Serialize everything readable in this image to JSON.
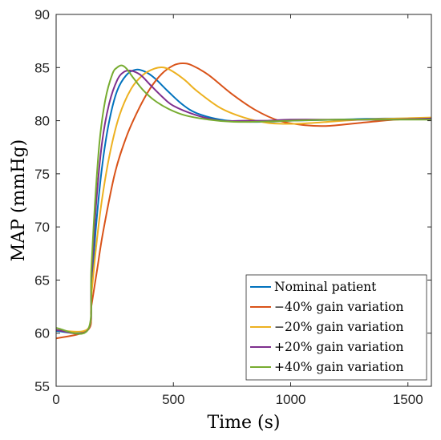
{
  "chart_data": {
    "type": "line",
    "xlabel": "Time (s)",
    "ylabel": "MAP (mmHg)",
    "xlim": [
      0,
      1600
    ],
    "ylim": [
      55,
      90
    ],
    "xticks": [
      0,
      500,
      1000,
      1500
    ],
    "yticks": [
      55,
      60,
      65,
      70,
      75,
      80,
      85,
      90
    ],
    "grid": false,
    "legend_position": "bottom-right",
    "series": [
      {
        "name": "Nominal patient",
        "color": "#0072BD",
        "x": [
          0,
          135,
          150,
          170,
          195,
          225,
          260,
          300,
          340,
          380,
          420,
          480,
          540,
          600,
          700,
          800,
          900,
          1000,
          1200,
          1400,
          1600
        ],
        "y": [
          60.2,
          60.3,
          64,
          70,
          75.5,
          79.8,
          82.8,
          84.3,
          84.8,
          84.6,
          84.0,
          82.7,
          81.5,
          80.7,
          80.1,
          79.9,
          79.9,
          80.0,
          80.1,
          80.2,
          80.2
        ]
      },
      {
        "name": "−40% gain variation",
        "color": "#D95319",
        "x": [
          0,
          135,
          150,
          175,
          200,
          250,
          300,
          350,
          400,
          450,
          500,
          540,
          580,
          650,
          750,
          850,
          950,
          1050,
          1150,
          1300,
          1450,
          1600
        ],
        "y": [
          59.5,
          60.3,
          62.5,
          66,
          69.5,
          75,
          78.5,
          81.0,
          83.0,
          84.4,
          85.2,
          85.4,
          85.2,
          84.3,
          82.5,
          81.0,
          80.0,
          79.6,
          79.5,
          79.8,
          80.1,
          80.2
        ]
      },
      {
        "name": "−20% gain variation",
        "color": "#EDB120",
        "x": [
          0,
          135,
          150,
          170,
          195,
          230,
          270,
          320,
          370,
          420,
          460,
          500,
          550,
          600,
          700,
          800,
          900,
          1000,
          1100,
          1300,
          1450,
          1600
        ],
        "y": [
          60.3,
          60.4,
          63.5,
          68,
          72.5,
          77,
          80.5,
          83.0,
          84.3,
          84.9,
          85.0,
          84.6,
          83.8,
          82.8,
          81.2,
          80.3,
          79.8,
          79.7,
          79.8,
          80.1,
          80.2,
          80.3
        ]
      },
      {
        "name": "+20% gain variation",
        "color": "#7E2F8E",
        "x": [
          0,
          135,
          150,
          170,
          195,
          225,
          260,
          290,
          320,
          360,
          400,
          450,
          500,
          600,
          700,
          800,
          900,
          1000,
          1200,
          1400,
          1600
        ],
        "y": [
          60.3,
          60.3,
          65,
          72,
          77.8,
          81.5,
          83.8,
          84.6,
          84.7,
          84.3,
          83.4,
          82.3,
          81.4,
          80.5,
          80.0,
          80.0,
          80.0,
          80.1,
          80.1,
          80.1,
          80.2
        ]
      },
      {
        "name": "+40% gain variation",
        "color": "#77AC30",
        "x": [
          0,
          135,
          150,
          165,
          185,
          210,
          240,
          260,
          280,
          300,
          330,
          370,
          420,
          480,
          550,
          650,
          750,
          850,
          1000,
          1200,
          1400,
          1600
        ],
        "y": [
          60.5,
          60.3,
          66,
          72,
          78,
          82,
          84.4,
          85.0,
          85.2,
          84.9,
          84.0,
          82.9,
          81.9,
          81.1,
          80.5,
          80.1,
          79.9,
          79.9,
          80.0,
          80.1,
          80.1,
          80.1
        ]
      }
    ]
  }
}
